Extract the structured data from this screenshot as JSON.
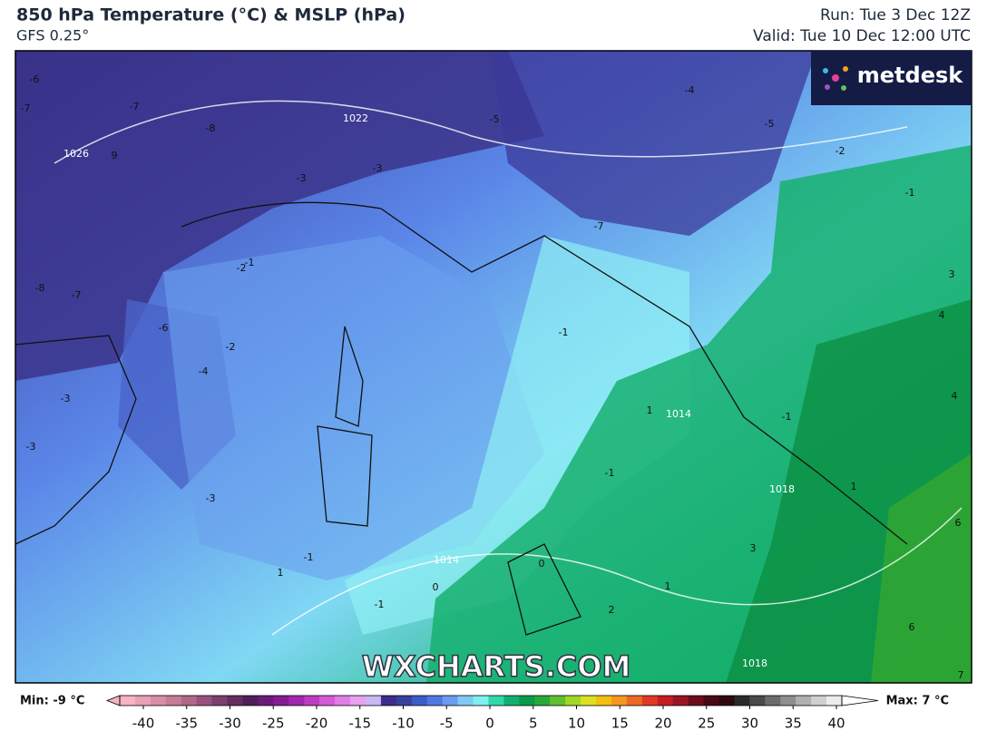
{
  "header": {
    "title": "850 hPa Temperature (°C) & MSLP (hPa)",
    "subtitle": "GFS 0.25°",
    "run": "Run: Tue 3 Dec 12Z",
    "valid": "Valid: Tue 10 Dec 12:00 UTC"
  },
  "logo": "metdesk",
  "watermark": "WXCHARTS.COM",
  "map_labels": [
    "-6",
    "-7",
    "1026",
    "9",
    "-8",
    "-7",
    "1022",
    "-7",
    "-5",
    "-4",
    "-5",
    "1014",
    "-2",
    "-3",
    "-3",
    "-2",
    "-1",
    "-8",
    "-7",
    "-6",
    "-2",
    "-4",
    "-3",
    "-1",
    "1",
    "3",
    "4",
    "4",
    "-3",
    "-3",
    "-1",
    "1",
    "0",
    "-1",
    "-1",
    "1014",
    "0",
    "-1",
    "2",
    "1",
    "3",
    "1018",
    "-1",
    "1",
    "6",
    "6",
    "1018",
    "7"
  ],
  "legend": {
    "min": "Min: -9 °C",
    "max": "Max: 7 °C",
    "ticks": [
      -40,
      -35,
      -30,
      -25,
      -20,
      -15,
      -10,
      -5,
      0,
      5,
      10,
      15,
      20,
      25,
      30,
      35,
      40
    ],
    "colors": [
      "#f6b3c0",
      "#e9a1b4",
      "#d88ea6",
      "#c67b98",
      "#b0678a",
      "#96527c",
      "#7c3f6e",
      "#62305e",
      "#4f1f5a",
      "#6a1c78",
      "#861c94",
      "#a226ae",
      "#be3cc4",
      "#d65ad8",
      "#e07ee6",
      "#e8a2ee",
      "#c8b8f4",
      "#3c2c8c",
      "#38409e",
      "#3c5cc8",
      "#5078e0",
      "#6a9cf0",
      "#80c8f6",
      "#7ff0f0",
      "#30d8a8",
      "#10b070",
      "#0a9a48",
      "#2aa838",
      "#62c030",
      "#a0d828",
      "#dce020",
      "#f4c010",
      "#f49820",
      "#ec6a24",
      "#e03a24",
      "#c41e22",
      "#9a1424",
      "#6e0c1c",
      "#4a0814",
      "#2e0a10",
      "#2a2a2a",
      "#4a4a4a",
      "#6c6c6c",
      "#8e8e8e",
      "#b0b0b0",
      "#d0d0d0",
      "#ececec"
    ]
  }
}
